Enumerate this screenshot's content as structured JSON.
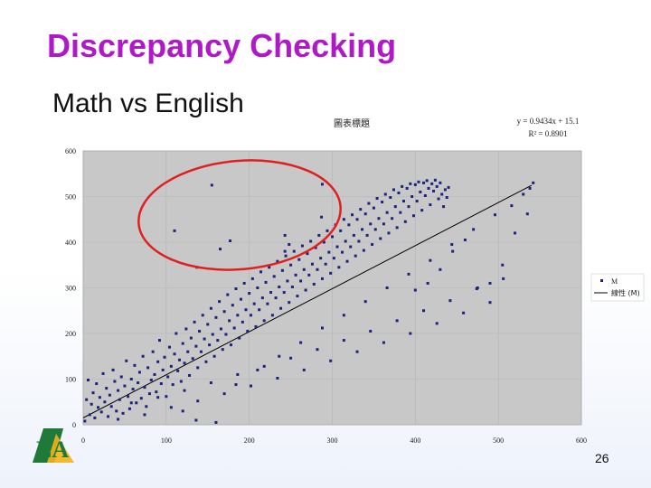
{
  "slide": {
    "title": "Discrepancy Checking",
    "subtitle": "Math vs English",
    "page_number": "26"
  },
  "colors": {
    "title": "#b019c8",
    "points": "#1a237e",
    "trendline": "#000000",
    "outlier_ellipse": "#e02020",
    "plot_background": "#c8c8c8"
  },
  "chart_data": {
    "type": "scatter",
    "title": "圖表標題",
    "equation": "y = 0.9434x + 15.1",
    "r_squared": "R² = 0.8901",
    "xlim": [
      0,
      600
    ],
    "ylim": [
      0,
      600
    ],
    "x_ticks": [
      "0",
      "100",
      "200",
      "300",
      "400",
      "500",
      "600"
    ],
    "y_ticks": [
      "0",
      "100",
      "200",
      "300",
      "400",
      "500",
      "600"
    ],
    "grid": true,
    "legend_position": "right",
    "legend": [
      "M",
      "線性 (M)"
    ],
    "trendline": {
      "slope": 0.9434,
      "intercept": 15.1
    },
    "series": [
      {
        "name": "M",
        "points": [
          [
            2,
            8
          ],
          [
            4,
            55
          ],
          [
            6,
            98
          ],
          [
            8,
            22
          ],
          [
            10,
            45
          ],
          [
            12,
            70
          ],
          [
            14,
            15
          ],
          [
            16,
            90
          ],
          [
            18,
            38
          ],
          [
            20,
            60
          ],
          [
            22,
            28
          ],
          [
            24,
            112
          ],
          [
            26,
            50
          ],
          [
            28,
            80
          ],
          [
            30,
            18
          ],
          [
            32,
            65
          ],
          [
            34,
            40
          ],
          [
            36,
            120
          ],
          [
            38,
            95
          ],
          [
            40,
            30
          ],
          [
            42,
            75
          ],
          [
            44,
            55
          ],
          [
            46,
            105
          ],
          [
            48,
            25
          ],
          [
            50,
            85
          ],
          [
            52,
            140
          ],
          [
            54,
            62
          ],
          [
            56,
            35
          ],
          [
            58,
            100
          ],
          [
            60,
            78
          ],
          [
            62,
            130
          ],
          [
            64,
            48
          ],
          [
            66,
            92
          ],
          [
            68,
            115
          ],
          [
            70,
            58
          ],
          [
            72,
            150
          ],
          [
            74,
            82
          ],
          [
            76,
            40
          ],
          [
            78,
            125
          ],
          [
            80,
            68
          ],
          [
            82,
            98
          ],
          [
            84,
            160
          ],
          [
            86,
            110
          ],
          [
            88,
            72
          ],
          [
            90,
            138
          ],
          [
            92,
            185
          ],
          [
            94,
            90
          ],
          [
            96,
            120
          ],
          [
            98,
            148
          ],
          [
            100,
            62
          ],
          [
            102,
            105
          ],
          [
            104,
            170
          ],
          [
            106,
            128
          ],
          [
            108,
            88
          ],
          [
            110,
            155
          ],
          [
            112,
            200
          ],
          [
            114,
            118
          ],
          [
            116,
            142
          ],
          [
            118,
            95
          ],
          [
            120,
            178
          ],
          [
            122,
            135
          ],
          [
            124,
            210
          ],
          [
            126,
            160
          ],
          [
            128,
            108
          ],
          [
            130,
            190
          ],
          [
            132,
            145
          ],
          [
            134,
            225
          ],
          [
            136,
            172
          ],
          [
            138,
            125
          ],
          [
            140,
            205
          ],
          [
            142,
            160
          ],
          [
            144,
            240
          ],
          [
            146,
            188
          ],
          [
            148,
            138
          ],
          [
            150,
            220
          ],
          [
            152,
            175
          ],
          [
            154,
            255
          ],
          [
            156,
            198
          ],
          [
            158,
            150
          ],
          [
            160,
            235
          ],
          [
            162,
            185
          ],
          [
            164,
            270
          ],
          [
            166,
            210
          ],
          [
            168,
            165
          ],
          [
            170,
            248
          ],
          [
            172,
            198
          ],
          [
            174,
            285
          ],
          [
            176,
            228
          ],
          [
            178,
            175
          ],
          [
            180,
            262
          ],
          [
            182,
            212
          ],
          [
            184,
            298
          ],
          [
            186,
            240
          ],
          [
            188,
            190
          ],
          [
            190,
            275
          ],
          [
            192,
            225
          ],
          [
            194,
            310
          ],
          [
            196,
            252
          ],
          [
            198,
            205
          ],
          [
            200,
            288
          ],
          [
            202,
            240
          ],
          [
            204,
            320
          ],
          [
            206,
            265
          ],
          [
            208,
            215
          ],
          [
            210,
            300
          ],
          [
            212,
            252
          ],
          [
            214,
            335
          ],
          [
            216,
            278
          ],
          [
            218,
            228
          ],
          [
            220,
            312
          ],
          [
            222,
            265
          ],
          [
            224,
            345
          ],
          [
            226,
            290
          ],
          [
            228,
            240
          ],
          [
            230,
            325
          ],
          [
            232,
            278
          ],
          [
            234,
            358
          ],
          [
            236,
            302
          ],
          [
            238,
            255
          ],
          [
            240,
            338
          ],
          [
            242,
            290
          ],
          [
            244,
            370
          ],
          [
            246,
            315
          ],
          [
            248,
            268
          ],
          [
            250,
            350
          ],
          [
            252,
            302
          ],
          [
            254,
            380
          ],
          [
            256,
            328
          ],
          [
            258,
            282
          ],
          [
            260,
            362
          ],
          [
            262,
            315
          ],
          [
            264,
            392
          ],
          [
            266,
            340
          ],
          [
            268,
            295
          ],
          [
            270,
            375
          ],
          [
            272,
            328
          ],
          [
            274,
            402
          ],
          [
            276,
            352
          ],
          [
            278,
            308
          ],
          [
            280,
            388
          ],
          [
            282,
            340
          ],
          [
            284,
            415
          ],
          [
            286,
            365
          ],
          [
            288,
            320
          ],
          [
            290,
            400
          ],
          [
            292,
            352
          ],
          [
            294,
            425
          ],
          [
            296,
            378
          ],
          [
            298,
            332
          ],
          [
            300,
            412
          ],
          [
            302,
            365
          ],
          [
            304,
            438
          ],
          [
            306,
            390
          ],
          [
            308,
            345
          ],
          [
            310,
            425
          ],
          [
            312,
            378
          ],
          [
            314,
            450
          ],
          [
            316,
            402
          ],
          [
            318,
            358
          ],
          [
            320,
            438
          ],
          [
            322,
            390
          ],
          [
            324,
            460
          ],
          [
            326,
            415
          ],
          [
            328,
            370
          ],
          [
            330,
            450
          ],
          [
            332,
            402
          ],
          [
            334,
            472
          ],
          [
            336,
            428
          ],
          [
            338,
            382
          ],
          [
            340,
            462
          ],
          [
            342,
            415
          ],
          [
            344,
            485
          ],
          [
            346,
            440
          ],
          [
            348,
            395
          ],
          [
            350,
            475
          ],
          [
            352,
            428
          ],
          [
            354,
            496
          ],
          [
            356,
            452
          ],
          [
            358,
            408
          ],
          [
            360,
            488
          ],
          [
            362,
            440
          ],
          [
            364,
            505
          ],
          [
            366,
            465
          ],
          [
            368,
            420
          ],
          [
            370,
            498
          ],
          [
            372,
            452
          ],
          [
            374,
            515
          ],
          [
            376,
            478
          ],
          [
            378,
            432
          ],
          [
            380,
            508
          ],
          [
            382,
            465
          ],
          [
            384,
            522
          ],
          [
            386,
            490
          ],
          [
            388,
            445
          ],
          [
            390,
            518
          ],
          [
            392,
            478
          ],
          [
            394,
            528
          ],
          [
            396,
            500
          ],
          [
            398,
            458
          ],
          [
            400,
            526
          ],
          [
            402,
            490
          ],
          [
            404,
            532
          ],
          [
            406,
            510
          ],
          [
            408,
            470
          ],
          [
            410,
            530
          ],
          [
            412,
            502
          ],
          [
            414,
            535
          ],
          [
            416,
            518
          ],
          [
            418,
            482
          ],
          [
            420,
            528
          ],
          [
            422,
            512
          ],
          [
            424,
            536
          ],
          [
            426,
            522
          ],
          [
            428,
            495
          ],
          [
            430,
            530
          ],
          [
            432,
            505
          ],
          [
            434,
            478
          ],
          [
            436,
            515
          ],
          [
            438,
            498
          ],
          [
            440,
            520
          ],
          [
            42,
            12
          ],
          [
            58,
            48
          ],
          [
            74,
            22
          ],
          [
            90,
            60
          ],
          [
            106,
            38
          ],
          [
            122,
            75
          ],
          [
            138,
            52
          ],
          [
            154,
            92
          ],
          [
            170,
            68
          ],
          [
            186,
            110
          ],
          [
            202,
            85
          ],
          [
            218,
            128
          ],
          [
            234,
            102
          ],
          [
            250,
            146
          ],
          [
            266,
            120
          ],
          [
            282,
            165
          ],
          [
            298,
            140
          ],
          [
            314,
            185
          ],
          [
            330,
            160
          ],
          [
            346,
            205
          ],
          [
            362,
            180
          ],
          [
            378,
            228
          ],
          [
            394,
            200
          ],
          [
            410,
            250
          ],
          [
            426,
            222
          ],
          [
            442,
            272
          ],
          [
            458,
            245
          ],
          [
            474,
            298
          ],
          [
            490,
            268
          ],
          [
            506,
            320
          ],
          [
            120,
            30
          ],
          [
            136,
            10
          ],
          [
            160,
            5
          ],
          [
            184,
            88
          ],
          [
            210,
            120
          ],
          [
            236,
            150
          ],
          [
            262,
            180
          ],
          [
            288,
            212
          ],
          [
            314,
            240
          ],
          [
            340,
            270
          ],
          [
            366,
            300
          ],
          [
            392,
            330
          ],
          [
            418,
            360
          ],
          [
            444,
            395
          ],
          [
            470,
            428
          ],
          [
            496,
            460
          ],
          [
            516,
            480
          ],
          [
            530,
            505
          ],
          [
            538,
            518
          ],
          [
            542,
            530
          ],
          [
            475,
            300
          ],
          [
            490,
            310
          ],
          [
            505,
            350
          ],
          [
            520,
            420
          ],
          [
            535,
            462
          ],
          [
            445,
            380
          ],
          [
            460,
            405
          ],
          [
            430,
            340
          ],
          [
            415,
            310
          ],
          [
            400,
            295
          ],
          [
            110,
            425
          ],
          [
            155,
            525
          ],
          [
            165,
            385
          ],
          [
            177,
            403
          ],
          [
            137,
            345
          ],
          [
            288,
            527
          ],
          [
            287,
            455
          ],
          [
            243,
            415
          ],
          [
            243,
            380
          ],
          [
            248,
            395
          ]
        ]
      }
    ]
  }
}
